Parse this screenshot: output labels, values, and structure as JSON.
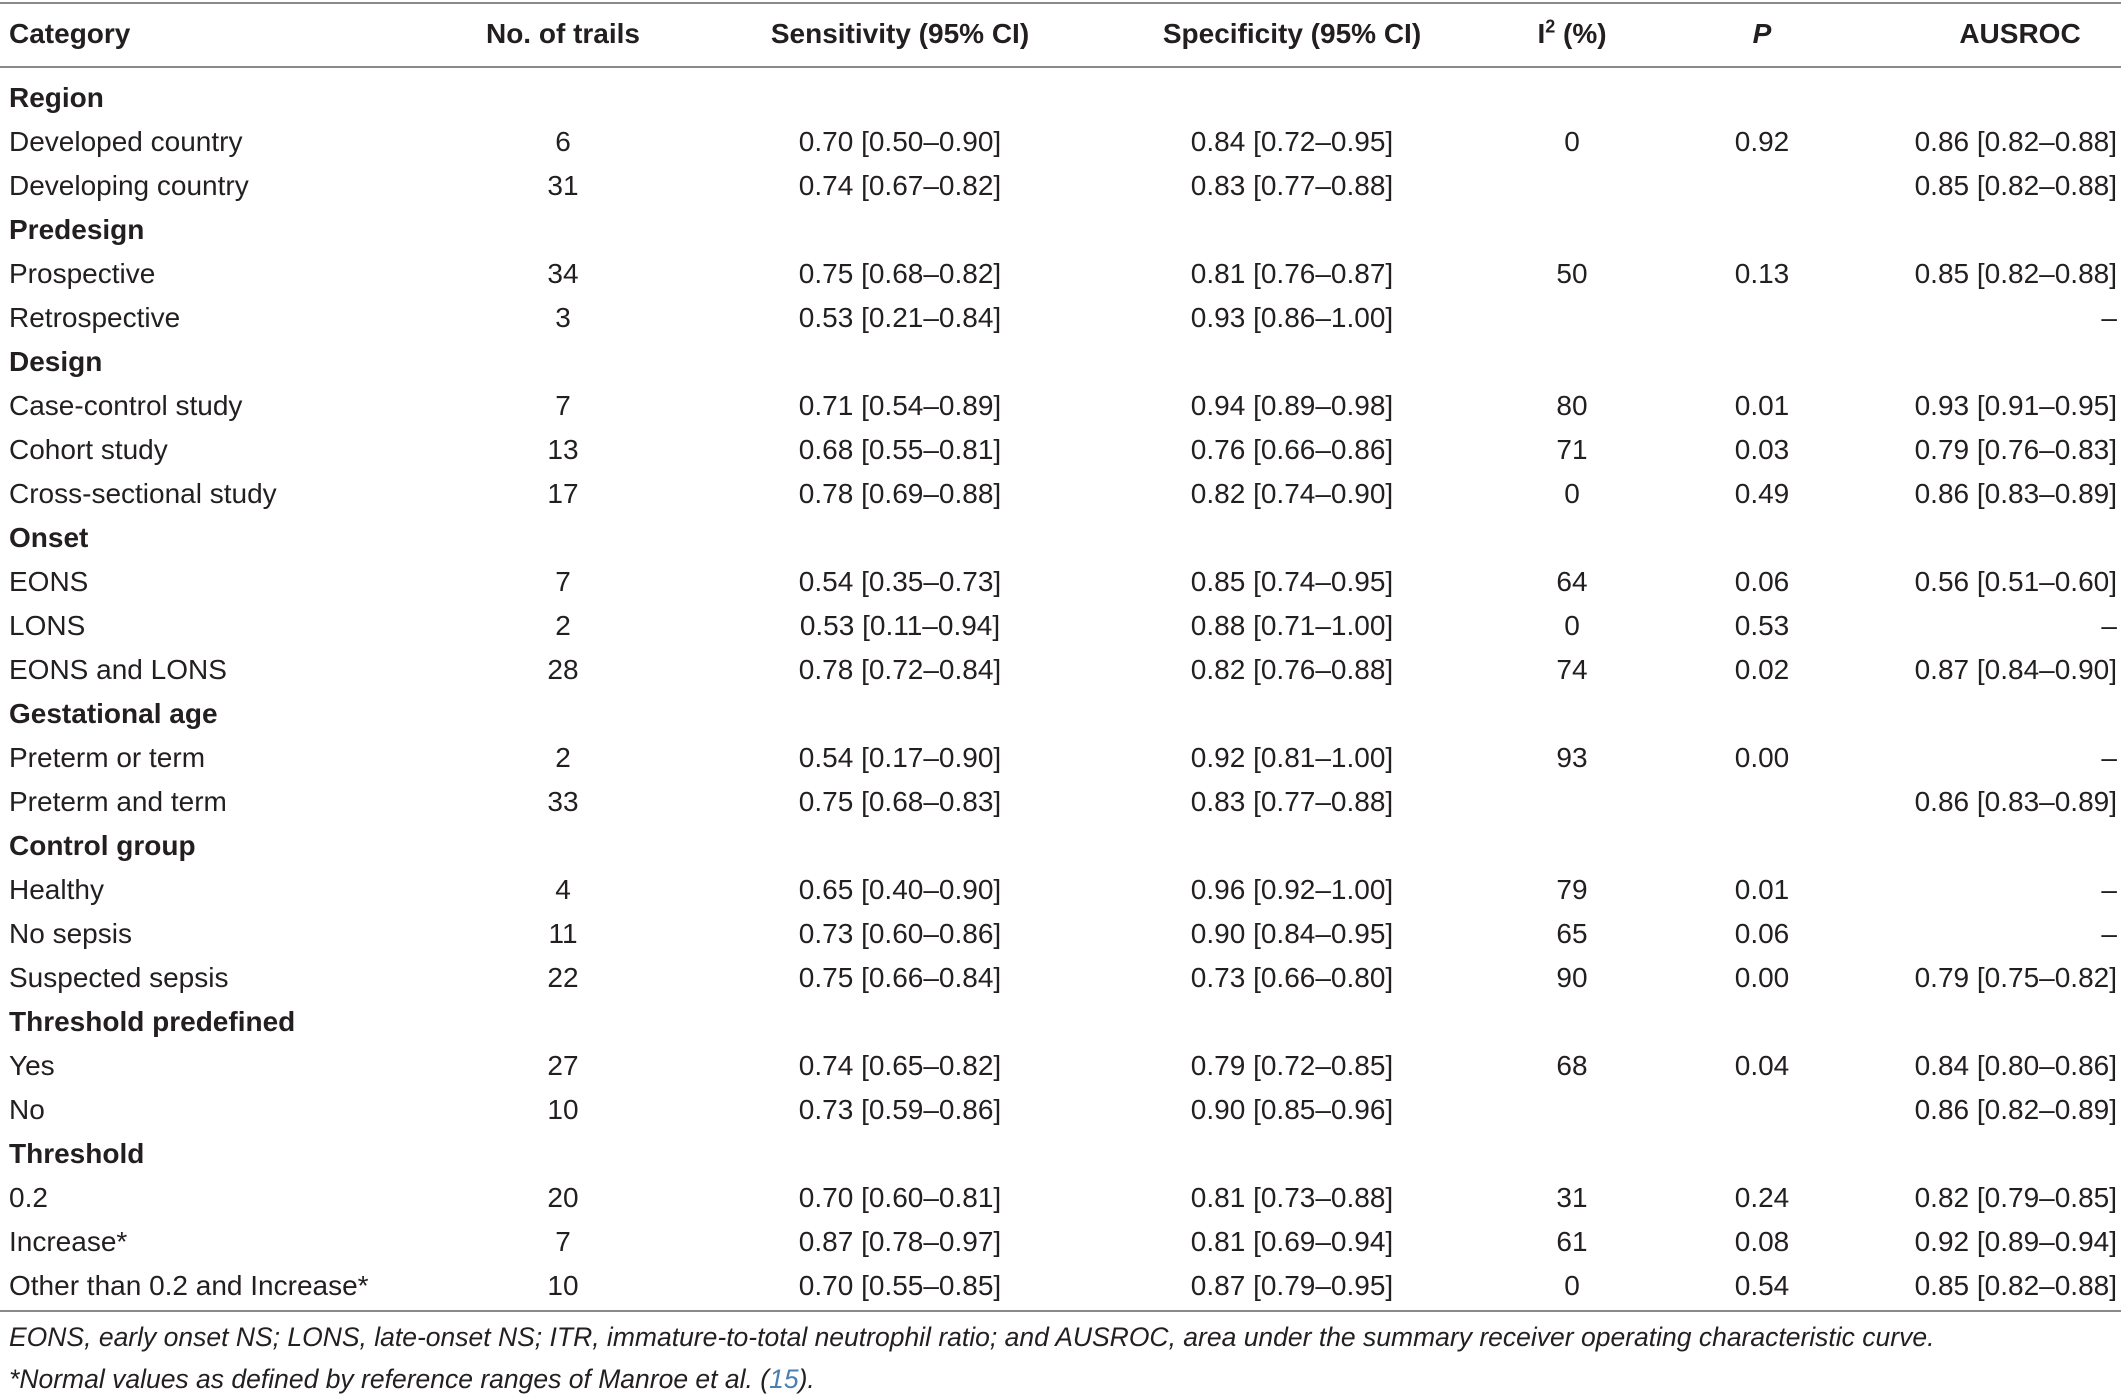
{
  "table": {
    "headers": {
      "category": "Category",
      "trials": "No. of trails",
      "sensitivity": "Sensitivity (95% CI)",
      "specificity": "Specificity (95% CI)",
      "i2_base": "I",
      "i2_sup": "2",
      "i2_unit": " (%)",
      "p": "P",
      "ausroc": "AUSROC"
    },
    "rows": [
      {
        "type": "section",
        "category": "Region"
      },
      {
        "type": "data",
        "category": "Developed country",
        "trials": "6",
        "sensitivity": "0.70 [0.50–0.90]",
        "specificity": "0.84 [0.72–0.95]",
        "i2": "0",
        "p": "0.92",
        "ausroc": "0.86 [0.82–0.88]"
      },
      {
        "type": "data",
        "category": "Developing country",
        "trials": "31",
        "sensitivity": "0.74 [0.67–0.82]",
        "specificity": "0.83 [0.77–0.88]",
        "i2": "",
        "p": "",
        "ausroc": "0.85 [0.82–0.88]"
      },
      {
        "type": "section",
        "category": "Predesign"
      },
      {
        "type": "data",
        "category": "Prospective",
        "trials": "34",
        "sensitivity": "0.75 [0.68–0.82]",
        "specificity": "0.81 [0.76–0.87]",
        "i2": "50",
        "p": "0.13",
        "ausroc": "0.85 [0.82–0.88]"
      },
      {
        "type": "data",
        "category": "Retrospective",
        "trials": "3",
        "sensitivity": "0.53 [0.21–0.84]",
        "specificity": "0.93 [0.86–1.00]",
        "i2": "",
        "p": "",
        "ausroc": "–"
      },
      {
        "type": "section",
        "category": "Design"
      },
      {
        "type": "data",
        "category": "Case-control study",
        "trials": "7",
        "sensitivity": "0.71 [0.54–0.89]",
        "specificity": "0.94 [0.89–0.98]",
        "i2": "80",
        "p": "0.01",
        "ausroc": "0.93 [0.91–0.95]"
      },
      {
        "type": "data",
        "category": "Cohort study",
        "trials": "13",
        "sensitivity": "0.68 [0.55–0.81]",
        "specificity": "0.76 [0.66–0.86]",
        "i2": "71",
        "p": "0.03",
        "ausroc": "0.79 [0.76–0.83]"
      },
      {
        "type": "data",
        "category": "Cross-sectional study",
        "trials": "17",
        "sensitivity": "0.78 [0.69–0.88]",
        "specificity": "0.82 [0.74–0.90]",
        "i2": "0",
        "p": "0.49",
        "ausroc": "0.86 [0.83–0.89]"
      },
      {
        "type": "section",
        "category": "Onset"
      },
      {
        "type": "data",
        "category": "EONS",
        "trials": "7",
        "sensitivity": "0.54 [0.35–0.73]",
        "specificity": "0.85 [0.74–0.95]",
        "i2": "64",
        "p": "0.06",
        "ausroc": "0.56 [0.51–0.60]"
      },
      {
        "type": "data",
        "category": "LONS",
        "trials": "2",
        "sensitivity": "0.53 [0.11–0.94]",
        "specificity": "0.88 [0.71–1.00]",
        "i2": "0",
        "p": "0.53",
        "ausroc": "–"
      },
      {
        "type": "data",
        "category": "EONS and LONS",
        "trials": "28",
        "sensitivity": "0.78 [0.72–0.84]",
        "specificity": "0.82 [0.76–0.88]",
        "i2": "74",
        "p": "0.02",
        "ausroc": "0.87 [0.84–0.90]"
      },
      {
        "type": "section",
        "category": "Gestational age"
      },
      {
        "type": "data",
        "category": "Preterm or term",
        "trials": "2",
        "sensitivity": "0.54 [0.17–0.90]",
        "specificity": "0.92 [0.81–1.00]",
        "i2": "93",
        "p": "0.00",
        "ausroc": "–"
      },
      {
        "type": "data",
        "category": "Preterm and term",
        "trials": "33",
        "sensitivity": "0.75 [0.68–0.83]",
        "specificity": "0.83 [0.77–0.88]",
        "i2": "",
        "p": "",
        "ausroc": "0.86 [0.83–0.89]"
      },
      {
        "type": "section",
        "category": "Control group"
      },
      {
        "type": "data",
        "category": "Healthy",
        "trials": "4",
        "sensitivity": "0.65 [0.40–0.90]",
        "specificity": "0.96 [0.92–1.00]",
        "i2": "79",
        "p": "0.01",
        "ausroc": "–"
      },
      {
        "type": "data",
        "category": "No sepsis",
        "trials": "11",
        "sensitivity": "0.73 [0.60–0.86]",
        "specificity": "0.90 [0.84–0.95]",
        "i2": "65",
        "p": "0.06",
        "ausroc": "–"
      },
      {
        "type": "data",
        "category": "Suspected sepsis",
        "trials": "22",
        "sensitivity": "0.75 [0.66–0.84]",
        "specificity": "0.73 [0.66–0.80]",
        "i2": "90",
        "p": "0.00",
        "ausroc": "0.79 [0.75–0.82]"
      },
      {
        "type": "section",
        "category": "Threshold predefined"
      },
      {
        "type": "data",
        "category": "Yes",
        "trials": "27",
        "sensitivity": "0.74 [0.65–0.82]",
        "specificity": "0.79 [0.72–0.85]",
        "i2": "68",
        "p": "0.04",
        "ausroc": "0.84 [0.80–0.86]"
      },
      {
        "type": "data",
        "category": "No",
        "trials": "10",
        "sensitivity": "0.73 [0.59–0.86]",
        "specificity": "0.90 [0.85–0.96]",
        "i2": "",
        "p": "",
        "ausroc": "0.86 [0.82–0.89]"
      },
      {
        "type": "section",
        "category": "Threshold"
      },
      {
        "type": "data",
        "category": "0.2",
        "trials": "20",
        "sensitivity": "0.70 [0.60–0.81]",
        "specificity": "0.81 [0.73–0.88]",
        "i2": "31",
        "p": "0.24",
        "ausroc": "0.82 [0.79–0.85]"
      },
      {
        "type": "data",
        "category": "Increase*",
        "trials": "7",
        "sensitivity": "0.87 [0.78–0.97]",
        "specificity": "0.81 [0.69–0.94]",
        "i2": "61",
        "p": "0.08",
        "ausroc": "0.92 [0.89–0.94]"
      },
      {
        "type": "data",
        "category": "Other than 0.2 and Increase*",
        "trials": "10",
        "sensitivity": "0.70 [0.55–0.85]",
        "specificity": "0.87 [0.79–0.95]",
        "i2": "0",
        "p": "0.54",
        "ausroc": "0.85 [0.82–0.88]"
      }
    ]
  },
  "footnotes": {
    "abbreviations": "EONS, early onset NS; LONS, late-onset NS; ITR, immature-to-total neutrophil ratio; and AUSROC, area under the summary receiver operating characteristic curve.",
    "normal_values_prefix": "*Normal values as defined by reference ranges of Manroe et al. (",
    "normal_values_ref": "15",
    "normal_values_suffix": ")."
  }
}
